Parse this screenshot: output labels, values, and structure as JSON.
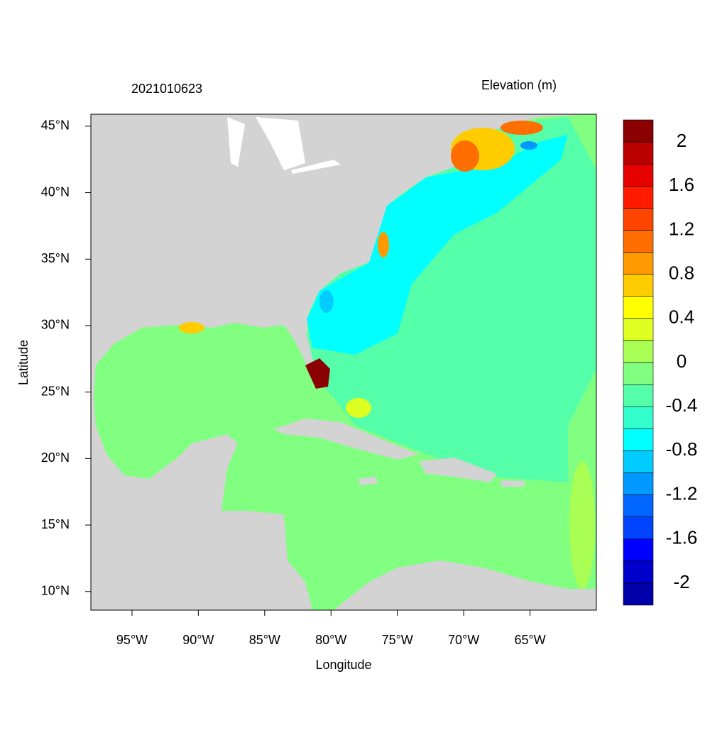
{
  "chart_data": {
    "type": "contour_map",
    "title": "2021010623",
    "subtitle": "Elevation (m)",
    "x_label": "Longitude",
    "y_label": "Latitude",
    "xlim": [
      -98.1,
      -60
    ],
    "ylim": [
      8.6,
      45.9
    ],
    "xticks": [
      {
        "value": -95,
        "label": "95°W"
      },
      {
        "value": -90,
        "label": "90°W"
      },
      {
        "value": -85,
        "label": "85°W"
      },
      {
        "value": -80,
        "label": "80°W"
      },
      {
        "value": -75,
        "label": "75°W"
      },
      {
        "value": -70,
        "label": "70°W"
      },
      {
        "value": -65,
        "label": "65°W"
      }
    ],
    "yticks": [
      {
        "value": 10,
        "label": "10°N"
      },
      {
        "value": 15,
        "label": "15°N"
      },
      {
        "value": 20,
        "label": "20°N"
      },
      {
        "value": 25,
        "label": "25°N"
      },
      {
        "value": 30,
        "label": "30°N"
      },
      {
        "value": 35,
        "label": "35°N"
      },
      {
        "value": 40,
        "label": "40°N"
      },
      {
        "value": 45,
        "label": "45°N"
      }
    ],
    "colorbar": {
      "levels": [
        -2.2,
        -2,
        -1.8,
        -1.6,
        -1.4,
        -1.2,
        -1,
        -0.8,
        -0.6,
        -0.4,
        -0.2,
        0,
        0.2,
        0.4,
        0.6,
        0.8,
        1,
        1.2,
        1.4,
        1.6,
        1.8,
        2,
        2.2
      ],
      "colors": [
        "#0000aa",
        "#0000cc",
        "#0000ff",
        "#0044ff",
        "#0066ff",
        "#0099ff",
        "#00ccff",
        "#00ffff",
        "#33ffcc",
        "#55ffaa",
        "#80ff80",
        "#aaff55",
        "#ddff22",
        "#ffff00",
        "#ffcc00",
        "#ff9900",
        "#ff6e00",
        "#ff4400",
        "#ff1a00",
        "#e60000",
        "#bb0000",
        "#8b0000"
      ],
      "ticks": [
        -2,
        -1.6,
        -1.2,
        -0.8,
        -0.4,
        0,
        0.4,
        0.8,
        1.2,
        1.6,
        2
      ]
    }
  }
}
